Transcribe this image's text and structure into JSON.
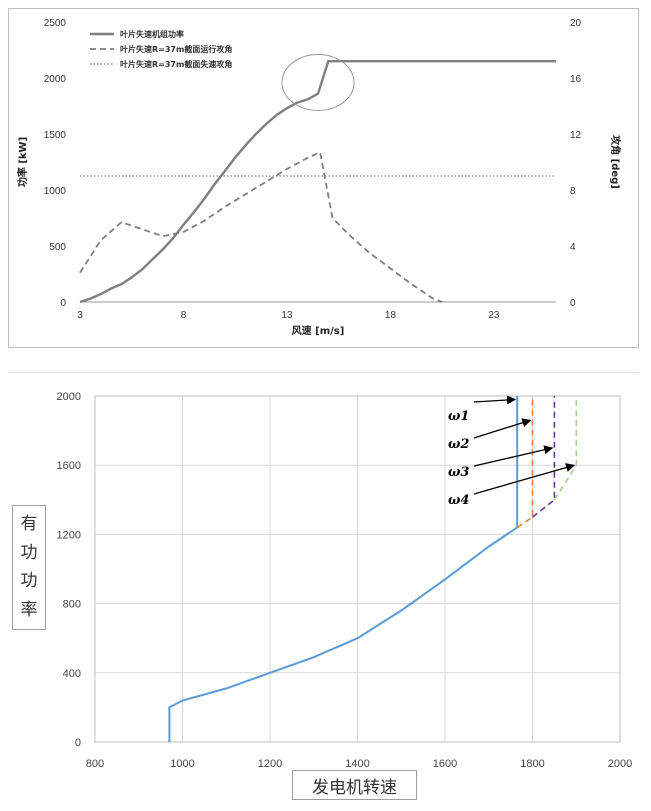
{
  "chart_data": [
    {
      "type": "line",
      "xlabel": "风速 [m/s]",
      "ylabel": "功率 [kW]",
      "ylabel_right": "攻角 [deg]",
      "xlim": [
        3,
        26
      ],
      "ylim": [
        0,
        2500
      ],
      "ylim_right": [
        0,
        20
      ],
      "x_ticks": [
        3,
        8,
        13,
        18,
        23
      ],
      "y_ticks": [
        0,
        500,
        1000,
        1500,
        2000,
        2500
      ],
      "y_ticks_right": [
        0,
        4,
        8,
        12,
        16,
        20
      ],
      "grid": false,
      "legend_position": "top-left",
      "series": [
        {
          "name": "叶片失速机组功率",
          "axis": "left",
          "style": "solid",
          "color": "#7f7f7f",
          "x": [
            3,
            3.5,
            4,
            4.5,
            5,
            5.5,
            6,
            6.5,
            7,
            7.5,
            8,
            8.5,
            9,
            9.5,
            10,
            10.5,
            11,
            11.5,
            12,
            12.5,
            13,
            13.5,
            14,
            14.5,
            15,
            16,
            18,
            20,
            22,
            24,
            26
          ],
          "values": [
            0,
            30,
            70,
            120,
            160,
            220,
            290,
            380,
            470,
            570,
            690,
            800,
            920,
            1050,
            1170,
            1290,
            1400,
            1500,
            1590,
            1670,
            1730,
            1780,
            1810,
            1860,
            2150,
            2150,
            2150,
            2150,
            2150,
            2150,
            2150
          ]
        },
        {
          "name": "叶片失速R=37m截面运行攻角",
          "axis": "right",
          "style": "dashed",
          "color": "#7f7f7f",
          "x": [
            3,
            4,
            5,
            6,
            7,
            8,
            9,
            10,
            11,
            12,
            13,
            14,
            14.6,
            15.2,
            16,
            17,
            18,
            19,
            20,
            20.5
          ],
          "values": [
            2.1,
            4.4,
            5.7,
            5.2,
            4.7,
            5.0,
            5.8,
            6.8,
            7.7,
            8.6,
            9.5,
            10.3,
            10.7,
            6.0,
            4.8,
            3.5,
            2.4,
            1.3,
            0.3,
            0
          ]
        },
        {
          "name": "叶片失速R=37m截面失速攻角",
          "axis": "right",
          "style": "dotted",
          "color": "#7f7f7f",
          "x": [
            3,
            26
          ],
          "values": [
            9.0,
            9.0
          ]
        }
      ]
    },
    {
      "type": "line",
      "xlabel": "发电机转速",
      "ylabel": "有功功率",
      "xlim": [
        800,
        2000
      ],
      "ylim": [
        0,
        2000
      ],
      "x_ticks": [
        800,
        1000,
        1200,
        1400,
        1600,
        1800,
        2000
      ],
      "y_ticks": [
        0,
        400,
        800,
        1200,
        1600,
        2000
      ],
      "grid": true,
      "annotations": [
        "ω1",
        "ω2",
        "ω3",
        "ω4"
      ],
      "series": [
        {
          "style": "solid",
          "color": "#5b9bd5",
          "x": [
            970,
            970,
            1000,
            1100,
            1200,
            1300,
            1400,
            1500,
            1600,
            1700,
            1765,
            1765
          ],
          "values": [
            0,
            200,
            240,
            310,
            400,
            490,
            600,
            760,
            940,
            1130,
            1240,
            2000
          ]
        },
        {
          "style": "dashed",
          "color": "#ed7d31",
          "x": [
            1765,
            1800,
            1800
          ],
          "values": [
            1240,
            1300,
            2000
          ]
        },
        {
          "style": "dashed",
          "color": "#7030a0",
          "x": [
            1800,
            1850,
            1850
          ],
          "values": [
            1300,
            1400,
            2000
          ]
        },
        {
          "style": "dashed",
          "color": "#a9d18e",
          "x": [
            1850,
            1900,
            1900
          ],
          "values": [
            1400,
            1600,
            2000
          ]
        }
      ]
    }
  ]
}
